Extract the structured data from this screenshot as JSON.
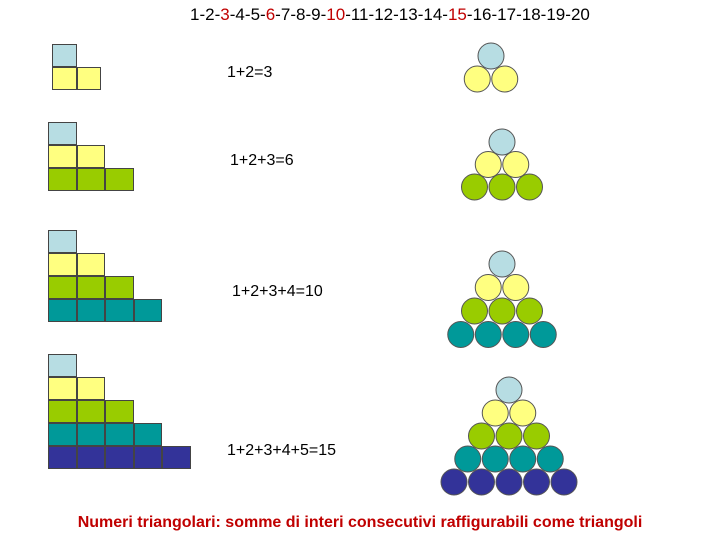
{
  "sequence": [
    "1",
    "2",
    "3",
    "4",
    "5",
    "6",
    "7",
    "8",
    "9",
    "10",
    "11",
    "12",
    "13",
    "14",
    "15",
    "16",
    "17",
    "18",
    "19",
    "20"
  ],
  "highlighted": [
    "3",
    "6",
    "10",
    "15"
  ],
  "highlight_color": "#c00000",
  "row_colors": [
    "#b7dde3",
    "#ffff80",
    "#99cc00",
    "#009999",
    "#333399"
  ],
  "equations": [
    "1+2=3",
    "1+2+3=6",
    "1+2+3+4=10",
    "1+2+3+4+5=15"
  ],
  "caption": "Numeri triangolari: somme di interi consecutivi raffigurabili come triangoli",
  "caption_color": "#c00000"
}
